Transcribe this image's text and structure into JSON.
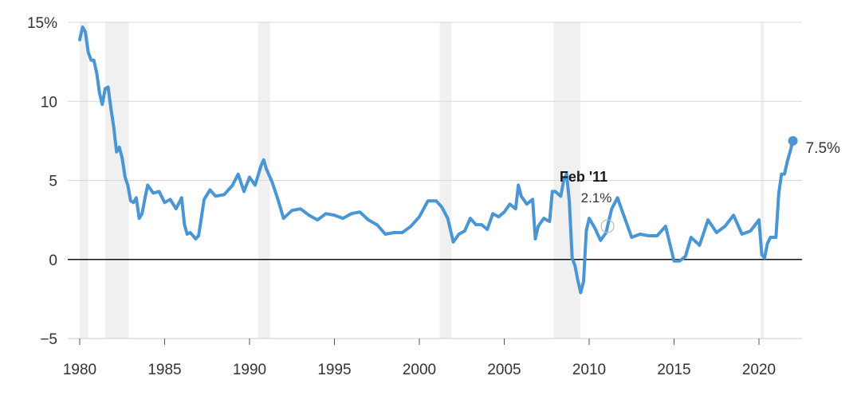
{
  "chart_data": {
    "type": "line",
    "title": "",
    "xlabel": "",
    "ylabel": "",
    "xlim": [
      1980,
      2022.6
    ],
    "ylim": [
      -5,
      15
    ],
    "x_ticks": [
      1980,
      1985,
      1990,
      1995,
      2000,
      2005,
      2010,
      2015,
      2020
    ],
    "x_tick_labels": [
      "1980",
      "1985",
      "1990",
      "1995",
      "2000",
      "2005",
      "2010",
      "2015",
      "2020"
    ],
    "y_ticks": [
      -5,
      0,
      5,
      10,
      15
    ],
    "y_tick_labels": [
      "−5",
      "0",
      "5",
      "10",
      "15%"
    ],
    "grid": "horizontal",
    "zero_line": true,
    "series_color": "#4a96d4",
    "shade_color": "#f0f0f0",
    "shaded_periods": [
      [
        1980.0,
        1980.5
      ],
      [
        1981.5,
        1982.9
      ],
      [
        1990.5,
        1991.2
      ],
      [
        2001.2,
        2001.9
      ],
      [
        2007.9,
        2009.5
      ],
      [
        2020.1,
        2020.3
      ]
    ],
    "series": [
      {
        "x": [
          1980.0,
          1980.17,
          1980.33,
          1980.5,
          1980.67,
          1980.83,
          1981.0,
          1981.17,
          1981.33,
          1981.5,
          1981.67,
          1981.83,
          1982.0,
          1982.17,
          1982.33,
          1982.5,
          1982.67,
          1982.83,
          1983.0,
          1983.17,
          1983.33,
          1983.5,
          1983.67,
          1983.83,
          1984.0,
          1984.33,
          1984.67,
          1985.0,
          1985.33,
          1985.67,
          1986.0,
          1986.17,
          1986.33,
          1986.5,
          1986.67,
          1986.83,
          1987.0,
          1987.33,
          1987.67,
          1988.0,
          1988.5,
          1989.0,
          1989.33,
          1989.67,
          1990.0,
          1990.33,
          1990.67,
          1990.83,
          1991.0,
          1991.33,
          1991.67,
          1992.0,
          1992.5,
          1993.0,
          1993.5,
          1994.0,
          1994.5,
          1995.0,
          1995.5,
          1996.0,
          1996.5,
          1997.0,
          1997.5,
          1998.0,
          1998.5,
          1999.0,
          1999.5,
          2000.0,
          2000.5,
          2001.0,
          2001.33,
          2001.67,
          2002.0,
          2002.33,
          2002.67,
          2003.0,
          2003.33,
          2003.67,
          2004.0,
          2004.33,
          2004.67,
          2005.0,
          2005.33,
          2005.67,
          2005.83,
          2006.0,
          2006.33,
          2006.67,
          2006.83,
          2007.0,
          2007.33,
          2007.67,
          2007.83,
          2008.0,
          2008.33,
          2008.5,
          2008.67,
          2008.83,
          2009.0,
          2009.17,
          2009.33,
          2009.5,
          2009.67,
          2009.83,
          2010.0,
          2010.33,
          2010.67,
          2011.0,
          2011.08,
          2011.33,
          2011.67,
          2012.0,
          2012.5,
          2013.0,
          2013.5,
          2014.0,
          2014.5,
          2015.0,
          2015.33,
          2015.67,
          2016.0,
          2016.5,
          2017.0,
          2017.5,
          2018.0,
          2018.5,
          2019.0,
          2019.5,
          2020.0,
          2020.17,
          2020.33,
          2020.5,
          2020.67,
          2021.0,
          2021.17,
          2021.33,
          2021.5,
          2021.67,
          2021.83,
          2022.0
        ],
        "values": [
          13.9,
          14.7,
          14.4,
          13.1,
          12.6,
          12.6,
          11.8,
          10.5,
          9.8,
          10.8,
          10.9,
          9.6,
          8.4,
          6.8,
          7.1,
          6.4,
          5.2,
          4.7,
          3.7,
          3.6,
          3.9,
          2.6,
          2.9,
          3.8,
          4.7,
          4.2,
          4.3,
          3.6,
          3.8,
          3.2,
          3.9,
          2.2,
          1.6,
          1.7,
          1.5,
          1.3,
          1.5,
          3.8,
          4.4,
          4.0,
          4.1,
          4.7,
          5.4,
          4.3,
          5.2,
          4.7,
          5.9,
          6.3,
          5.7,
          4.9,
          3.8,
          2.6,
          3.1,
          3.2,
          2.8,
          2.5,
          2.9,
          2.8,
          2.6,
          2.9,
          3.0,
          2.5,
          2.2,
          1.6,
          1.7,
          1.7,
          2.1,
          2.7,
          3.7,
          3.7,
          3.3,
          2.6,
          1.1,
          1.6,
          1.8,
          2.6,
          2.2,
          2.2,
          1.9,
          2.9,
          2.7,
          3.0,
          3.5,
          3.2,
          4.7,
          4.0,
          3.5,
          3.8,
          1.3,
          2.1,
          2.6,
          2.4,
          4.3,
          4.3,
          4.0,
          5.0,
          5.4,
          3.7,
          0.1,
          -0.4,
          -1.3,
          -2.1,
          -1.4,
          1.8,
          2.6,
          2.0,
          1.2,
          1.7,
          2.1,
          3.2,
          3.9,
          2.9,
          1.4,
          1.6,
          1.5,
          1.5,
          2.1,
          -0.1,
          -0.1,
          0.2,
          1.4,
          0.9,
          2.5,
          1.7,
          2.1,
          2.8,
          1.6,
          1.8,
          2.5,
          0.3,
          0.1,
          1.0,
          1.4,
          1.4,
          4.2,
          5.4,
          5.4,
          6.2,
          6.8,
          7.5
        ]
      }
    ],
    "end_point": {
      "x": 2022.0,
      "value": 7.5,
      "label": "7.5%"
    },
    "hover": {
      "x": 2011.08,
      "value": 2.1,
      "date_label": "Feb '11",
      "value_label": "2.1%"
    }
  }
}
